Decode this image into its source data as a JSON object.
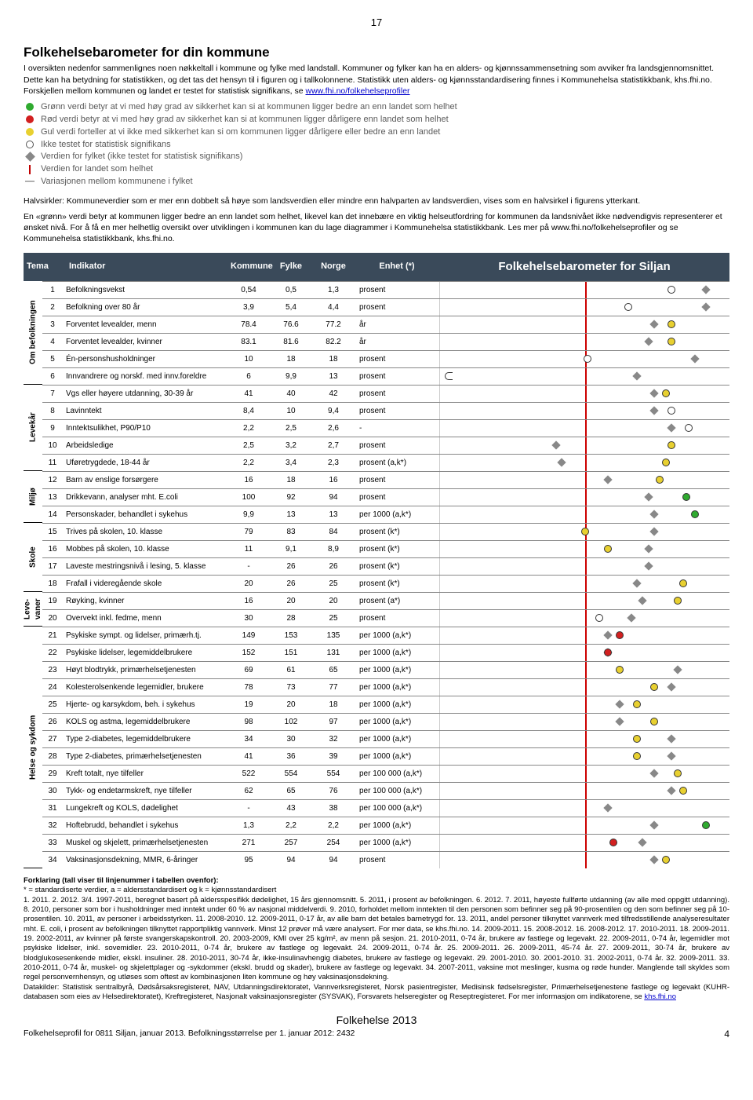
{
  "page_number_top": "17",
  "title": "Folkehelsebarometer for din kommune",
  "intro_text": "I oversikten nedenfor sammenlignes noen nøkkeltall i kommune og fylke med landstall. Kommuner og fylker kan ha en alders- og kjønnssammensetning som avviker fra landsgjennomsnittet. Dette kan ha betydning for statistikken, og det tas det hensyn til i figuren og i tallkolonnene. Statistikk uten alders- og kjønnsstandardisering finnes i Kommunehelsa statistikkbank, khs.fhi.no. Forskjellen mellom kommunen og landet er testet for statistisk signifikans, se ",
  "intro_link": "www.fhi.no/folkehelseprofiler",
  "legend": [
    {
      "type": "dot",
      "color": "#2faa2f",
      "text": "Grønn verdi betyr at vi med høy grad av sikkerhet kan si at kommunen ligger bedre an enn landet som helhet"
    },
    {
      "type": "dot",
      "color": "#d22020",
      "text": "Rød verdi betyr at vi med høy grad av sikkerhet kan si at kommunen ligger dårligere enn landet som helhet"
    },
    {
      "type": "dot",
      "color": "#e8d030",
      "text": "Gul verdi forteller at vi ikke med sikkerhet kan si om kommunen ligger dårligere eller bedre an enn landet"
    },
    {
      "type": "dot",
      "color": "#ffffff",
      "border": "#555",
      "text": "Ikke testet for statistisk signifikans"
    },
    {
      "type": "dia",
      "color": "#888888",
      "text": "Verdien for fylket (ikke testet for statistisk signifikans)"
    },
    {
      "type": "vline",
      "color": "#c00000",
      "text": "Verdien for landet som helhet"
    },
    {
      "type": "hline",
      "color": "#b0b0b0",
      "text": "Variasjonen mellom kommunene i fylket"
    }
  ],
  "para1": "Halvsirkler: Kommuneverdier som er mer enn dobbelt så høye som landsverdien eller mindre enn halvparten av landsverdien, vises som en halvsirkel i figurens ytterkant.",
  "para2": "En «grønn» verdi betyr at kommunen ligger bedre an enn landet som helhet, likevel kan det innebære en viktig helseutfordring for kommunen da landsnivået ikke nødvendigvis representerer et ønsket nivå. For å få en mer helhetlig oversikt over utviklingen i kommunen kan du lage diagrammer i Kommunehelsa statistikkbank. Les mer på www.fhi.no/folkehelseprofiler og se Kommunehelsa statistikkbank, khs.fhi.no.",
  "header": {
    "tema": "Tema",
    "indikator": "Indikator",
    "kommune": "Kommune",
    "fylke": "Fylke",
    "norge": "Norge",
    "enhet": "Enhet (*)",
    "chart_title": "Folkehelsebarometer for Siljan"
  },
  "colors": {
    "green": "#2faa2f",
    "red": "#d22020",
    "yellow": "#e8d030",
    "white": "#ffffff",
    "grey": "#888888",
    "midline": "#c00000",
    "header_bg": "#3a4a5a"
  },
  "groups": [
    {
      "label": "Om befolkningen",
      "rows": [
        {
          "n": 1,
          "ind": "Befolkningsvekst",
          "k": "0,54",
          "f": "0,5",
          "no": "1,3",
          "u": "prosent",
          "kc": "white",
          "kp": 80,
          "fp": 92
        },
        {
          "n": 2,
          "ind": "Befolkning over 80 år",
          "k": "3,9",
          "f": "5,4",
          "no": "4,4",
          "u": "prosent",
          "kc": "white",
          "kp": 65,
          "fp": 92
        },
        {
          "n": 3,
          "ind": "Forventet levealder, menn",
          "k": "78.4",
          "f": "76.6",
          "no": "77.2",
          "u": "år",
          "kc": "yellow",
          "kp": 80,
          "fp": 74
        },
        {
          "n": 4,
          "ind": "Forventet levealder, kvinner",
          "k": "83.1",
          "f": "81.6",
          "no": "82.2",
          "u": "år",
          "kc": "yellow",
          "kp": 80,
          "fp": 72
        },
        {
          "n": 5,
          "ind": "Én-personshusholdninger",
          "k": "10",
          "f": "18",
          "no": "18",
          "u": "prosent",
          "kc": "white",
          "kp": 51,
          "fp": 88
        },
        {
          "n": 6,
          "ind": "Innvandrere og norskf. med innv.foreldre",
          "k": "6",
          "f": "9,9",
          "no": "13",
          "u": "prosent",
          "kc": "halfL",
          "kp": 0,
          "fp": 68
        }
      ]
    },
    {
      "label": "Levekår",
      "rows": [
        {
          "n": 7,
          "ind": "Vgs eller høyere utdanning, 30-39 år",
          "k": "41",
          "f": "40",
          "no": "42",
          "u": "prosent",
          "kc": "yellow",
          "kp": 78,
          "fp": 74
        },
        {
          "n": 8,
          "ind": "Lavinntekt",
          "k": "8,4",
          "f": "10",
          "no": "9,4",
          "u": "prosent",
          "kc": "white",
          "kp": 80,
          "fp": 74
        },
        {
          "n": 9,
          "ind": "Inntektsulikhet, P90/P10",
          "k": "2,2",
          "f": "2,5",
          "no": "2,6",
          "u": "-",
          "kc": "white",
          "kp": 86,
          "fp": 80
        },
        {
          "n": 10,
          "ind": "Arbeidsledige",
          "k": "2,5",
          "f": "3,2",
          "no": "2,7",
          "u": "prosent",
          "kc": "yellow",
          "kp": 80,
          "fp": 40
        },
        {
          "n": 11,
          "ind": "Uføretrygdede, 18-44 år",
          "k": "2,2",
          "f": "3,4",
          "no": "2,3",
          "u": "prosent (a,k*)",
          "kc": "yellow",
          "kp": 78,
          "fp": 42
        }
      ]
    },
    {
      "label": "Miljø",
      "rows": [
        {
          "n": 12,
          "ind": "Barn av enslige forsørgere",
          "k": "16",
          "f": "18",
          "no": "16",
          "u": "prosent",
          "kc": "yellow",
          "kp": 76,
          "fp": 58
        },
        {
          "n": 13,
          "ind": "Drikkevann, analyser mht. E.coli",
          "k": "100",
          "f": "92",
          "no": "94",
          "u": "prosent",
          "kc": "green",
          "kp": 85,
          "fp": 72
        },
        {
          "n": 14,
          "ind": "Personskader, behandlet i sykehus",
          "k": "9,9",
          "f": "13",
          "no": "13",
          "u": "per 1000 (a,k*)",
          "kc": "green",
          "kp": 88,
          "fp": 74
        }
      ]
    },
    {
      "label": "Skole",
      "rows": [
        {
          "n": 15,
          "ind": "Trives på skolen, 10. klasse",
          "k": "79",
          "f": "83",
          "no": "84",
          "u": "prosent (k*)",
          "kc": "yellow",
          "kp": 50,
          "fp": 74
        },
        {
          "n": 16,
          "ind": "Mobbes på skolen, 10. klasse",
          "k": "11",
          "f": "9,1",
          "no": "8,9",
          "u": "prosent (k*)",
          "kc": "yellow",
          "kp": 58,
          "fp": 72
        },
        {
          "n": 17,
          "ind": "Laveste mestringsnivå i lesing, 5. klasse",
          "k": "-",
          "f": "26",
          "no": "26",
          "u": "prosent (k*)",
          "kc": "none",
          "kp": -1,
          "fp": 72
        },
        {
          "n": 18,
          "ind": "Frafall i videregående skole",
          "k": "20",
          "f": "26",
          "no": "25",
          "u": "prosent (k*)",
          "kc": "yellow",
          "kp": 84,
          "fp": 68
        }
      ]
    },
    {
      "label": "Leve-\\nvaner",
      "rows": [
        {
          "n": 19,
          "ind": "Røyking, kvinner",
          "k": "16",
          "f": "20",
          "no": "20",
          "u": "prosent (a*)",
          "kc": "yellow",
          "kp": 82,
          "fp": 70
        },
        {
          "n": 20,
          "ind": "Overvekt inkl. fedme, menn",
          "k": "30",
          "f": "28",
          "no": "25",
          "u": "prosent",
          "kc": "white",
          "kp": 55,
          "fp": 66
        }
      ]
    },
    {
      "label": "Helse og sykdom",
      "rows": [
        {
          "n": 21,
          "ind": "Psykiske sympt. og lidelser, primærh.tj.",
          "k": "149",
          "f": "153",
          "no": "135",
          "u": "per 1000 (a,k*)",
          "kc": "red",
          "kp": 62,
          "fp": 58
        },
        {
          "n": 22,
          "ind": "Psykiske lidelser, legemiddelbrukere",
          "k": "152",
          "f": "151",
          "no": "131",
          "u": "per 1000 (a,k*)",
          "kc": "red",
          "kp": 58,
          "fp": 58
        },
        {
          "n": 23,
          "ind": "Høyt blodtrykk, primærhelsetjenesten",
          "k": "69",
          "f": "61",
          "no": "65",
          "u": "per 1000 (a,k*)",
          "kc": "yellow",
          "kp": 62,
          "fp": 82
        },
        {
          "n": 24,
          "ind": "Kolesterolsenkende legemidler, brukere",
          "k": "78",
          "f": "73",
          "no": "77",
          "u": "per 1000 (a,k*)",
          "kc": "yellow",
          "kp": 74,
          "fp": 80
        },
        {
          "n": 25,
          "ind": "Hjerte- og karsykdom, beh. i sykehus",
          "k": "19",
          "f": "20",
          "no": "18",
          "u": "per 1000 (a,k*)",
          "kc": "yellow",
          "kp": 68,
          "fp": 62
        },
        {
          "n": 26,
          "ind": "KOLS og astma, legemiddelbrukere",
          "k": "98",
          "f": "102",
          "no": "97",
          "u": "per 1000 (a,k*)",
          "kc": "yellow",
          "kp": 74,
          "fp": 62
        },
        {
          "n": 27,
          "ind": "Type 2-diabetes, legemiddelbrukere",
          "k": "34",
          "f": "30",
          "no": "32",
          "u": "per 1000 (a,k*)",
          "kc": "yellow",
          "kp": 68,
          "fp": 80
        },
        {
          "n": 28,
          "ind": "Type 2-diabetes, primærhelsetjenesten",
          "k": "41",
          "f": "36",
          "no": "39",
          "u": "per 1000 (a,k*)",
          "kc": "yellow",
          "kp": 68,
          "fp": 80
        },
        {
          "n": 29,
          "ind": "Kreft totalt, nye tilfeller",
          "k": "522",
          "f": "554",
          "no": "554",
          "u": "per 100 000 (a,k*)",
          "kc": "yellow",
          "kp": 82,
          "fp": 74
        },
        {
          "n": 30,
          "ind": "Tykk- og endetarmskreft, nye tilfeller",
          "k": "62",
          "f": "65",
          "no": "76",
          "u": "per 100 000 (a,k*)",
          "kc": "yellow",
          "kp": 84,
          "fp": 80
        },
        {
          "n": 31,
          "ind": "Lungekreft og KOLS, dødelighet",
          "k": "-",
          "f": "43",
          "no": "38",
          "u": "per 100 000 (a,k*)",
          "kc": "none",
          "kp": -1,
          "fp": 58
        },
        {
          "n": 32,
          "ind": "Hoftebrudd, behandlet i sykehus",
          "k": "1,3",
          "f": "2,2",
          "no": "2,2",
          "u": "per 1000 (a,k*)",
          "kc": "green",
          "kp": 92,
          "fp": 74
        },
        {
          "n": 33,
          "ind": "Muskel og skjelett, primærhelsetjenesten",
          "k": "271",
          "f": "257",
          "no": "254",
          "u": "per 1000 (a,k*)",
          "kc": "red",
          "kp": 60,
          "fp": 70
        },
        {
          "n": 34,
          "ind": "Vaksinasjonsdekning, MMR, 6-åringer",
          "k": "95",
          "f": "94",
          "no": "94",
          "u": "prosent",
          "kc": "yellow",
          "kp": 78,
          "fp": 74
        }
      ]
    }
  ],
  "foot_head": "Forklaring (tall viser til linjenummer i tabellen ovenfor):",
  "foot_body": "* = standardiserte verdier, a = aldersstandardisert og k = kjønnsstandardisert\n1. 2011. 2. 2012. 3/4. 1997-2011, beregnet basert på aldersspesifikk dødelighet, 15 års gjennomsnitt. 5. 2011, i prosent av befolkningen. 6. 2012. 7. 2011, høyeste fullførte utdanning (av alle med oppgitt utdanning). 8. 2010, personer som bor i husholdninger med inntekt under 60 % av nasjonal middelverdi. 9. 2010, forholdet mellom inntekten til den personen som befinner seg på 90-prosentilen og den som befinner seg på 10-prosentilen. 10. 2011, av personer i arbeidsstyrken. 11. 2008-2010. 12. 2009-2011, 0-17 år, av alle barn det betales barnetrygd for. 13. 2011, andel personer tilknyttet vannverk med tilfredsstillende analyseresultater mht. E. coli, i prosent av befolkningen tilknyttet rapportpliktig vannverk. Minst 12 prøver må være analysert. For mer data, se khs.fhi.no. 14. 2009-2011. 15. 2008-2012. 16. 2008-2012. 17. 2010-2011. 18. 2009-2011. 19. 2002-2011, av kvinner på første svangerskapskontroll. 20. 2003-2009, KMI over 25 kg/m², av menn på sesjon. 21. 2010-2011, 0-74 år, brukere av fastlege og legevakt. 22. 2009-2011, 0-74 år, legemidler mot psykiske lidelser, inkl. sovemidler. 23. 2010-2011, 0-74 år, brukere av fastlege og legevakt. 24. 2009-2011, 0-74 år. 25. 2009-2011. 26. 2009-2011, 45-74 år. 27. 2009-2011, 30-74 år, brukere av blodglukosesenkende midler, ekskl. insuliner. 28. 2010-2011, 30-74 år, ikke-insulinavhengig diabetes, brukere av fastlege og legevakt. 29. 2001-2010. 30. 2001-2010. 31. 2002-2011, 0-74 år. 32. 2009-2011. 33. 2010-2011, 0-74 år, muskel- og skjelettplager og -sykdommer (ekskl. brudd og skader), brukere av fastlege og legevakt. 34. 2007-2011, vaksine mot meslinger, kusma og røde hunder. Manglende tall skyldes som regel personvernhensyn, og utløses som oftest av kombinasjonen liten kommune og høy vaksinasjonsdekning.\nDatakilder: Statistisk sentralbyrå, Dødsårsaksregisteret, NAV, Utdanningsdirektoratet, Vannverksregisteret, Norsk pasientregister, Medisinsk fødselsregister, Primærhelsetjenestene fastlege og legevakt (KUHR-databasen som eies av Helsedirektoratet), Kreftregisteret, Nasjonalt vaksinasjonsregister (SYSVAK), Forsvarets helseregister og Reseptregisteret. For mer informasjon om indikatorene, se ",
  "foot_link": "khs.fhi.no",
  "footer_title": "Folkehelse 2013",
  "footer_sub": "Folkehelseprofil for 0811 Siljan, januar 2013. Befolkningsstørrelse per 1. januar 2012:  2432",
  "footer_page": "4"
}
